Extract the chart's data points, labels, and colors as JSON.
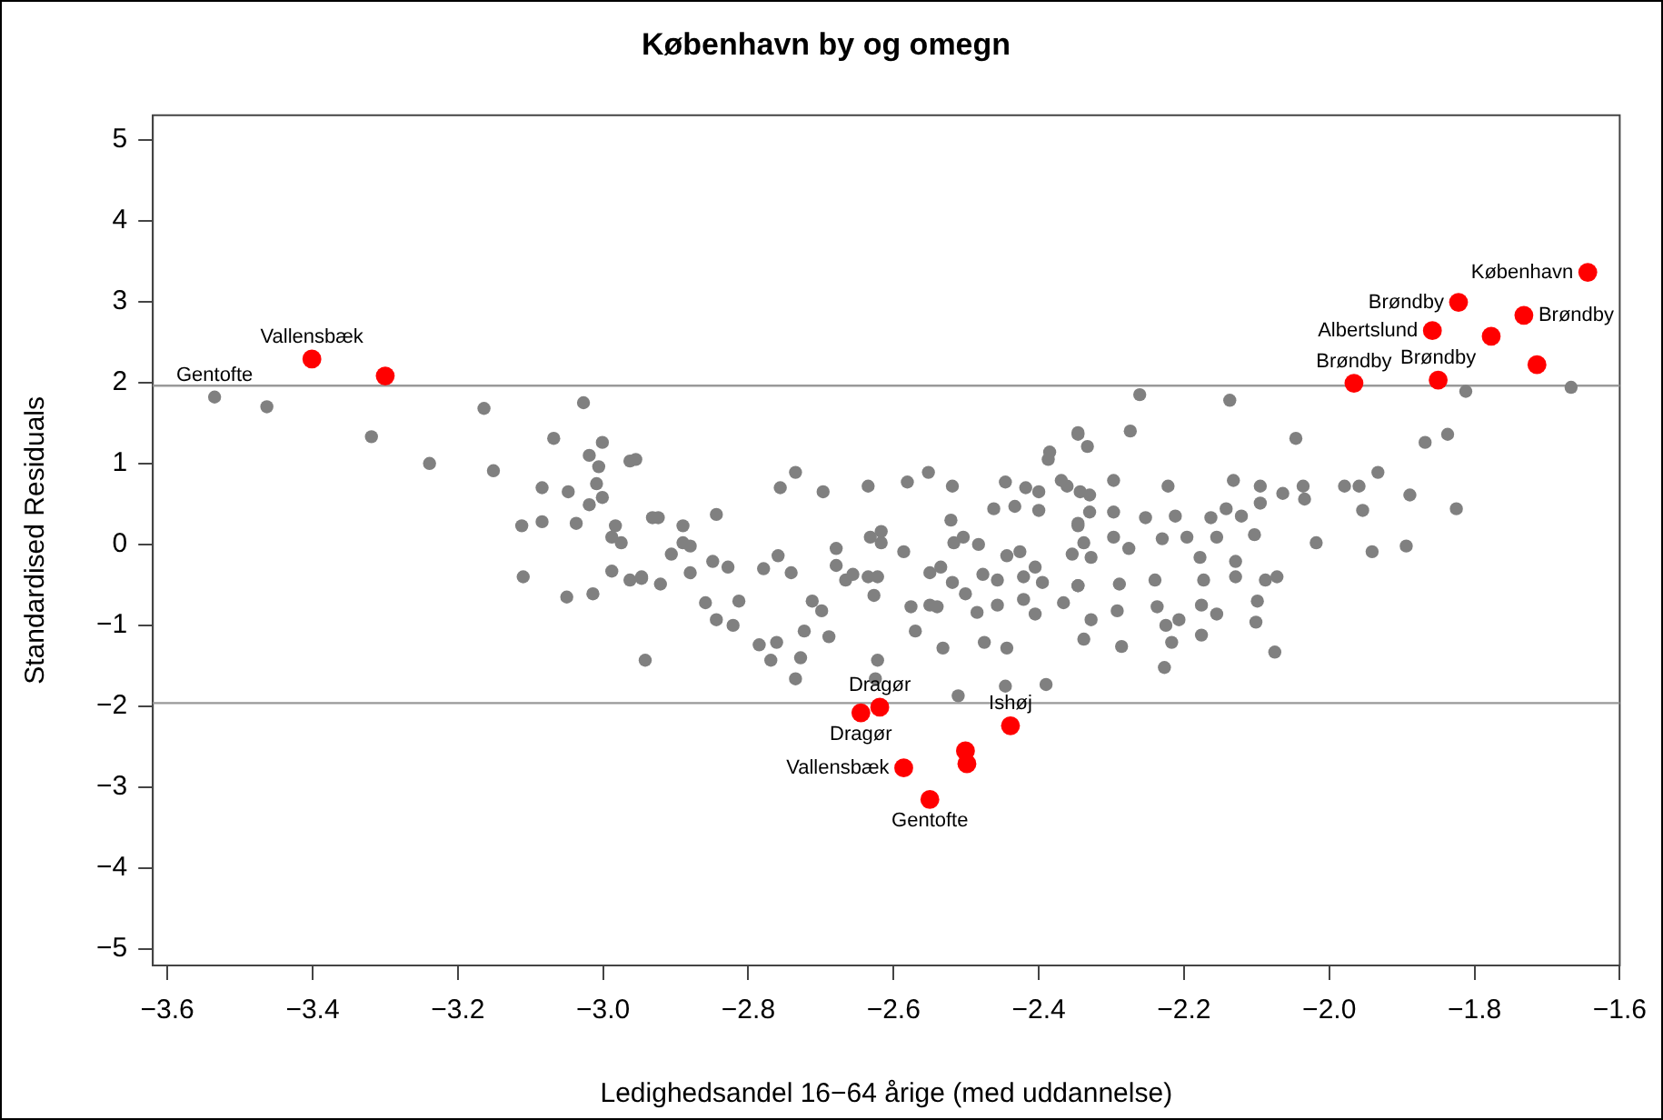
{
  "chart_data": {
    "type": "scatter",
    "title": "København by og omegn",
    "xlabel": "Ledighedsandel 16−64 årige (med uddannelse)",
    "ylabel": "Standardised Residuals",
    "xlim": [
      -3.62,
      -1.6
    ],
    "ylim": [
      -5.2,
      5.3
    ],
    "xticks": [
      -3.6,
      -3.4,
      -3.2,
      {
        "value": -3,
        "label": "−3.0"
      },
      -2.8,
      -2.6,
      -2.4,
      -2.2,
      {
        "value": -2,
        "label": "−2.0"
      },
      -1.8,
      -1.6
    ],
    "yticks": [
      -5,
      -4,
      -3,
      -2,
      -1,
      0,
      1,
      2,
      3,
      4,
      5
    ],
    "grid": false,
    "legend": false,
    "marker": "circle",
    "ref_lines": [
      {
        "axis": "y",
        "value": 1.96,
        "label": null,
        "color": "#999999"
      },
      {
        "axis": "y",
        "value": -1.96,
        "label": null,
        "color": "#999999"
      }
    ],
    "series": [
      {
        "color": "#808080",
        "x": [
          -3.535,
          -3.463,
          -3.319,
          -3.239,
          -3.164,
          -3.151,
          -3.027,
          -3.068,
          -3.001,
          -3.019,
          -3.006,
          -2.963,
          -3.084,
          -3.048,
          -3.009,
          -3.019,
          -3.001,
          -3.112,
          -3.084,
          -3.037,
          -2.983,
          -2.988,
          -2.975,
          -2.932,
          -3.11,
          -3.05,
          -3.014,
          -2.988,
          -2.963,
          -2.947,
          -2.942,
          -2.955,
          -2.924,
          -2.89,
          -2.89,
          -2.88,
          -2.906,
          -2.844,
          -2.849,
          -2.828,
          -2.88,
          -2.947,
          -2.921,
          -2.859,
          -2.813,
          -2.844,
          -2.821,
          -2.785,
          -2.761,
          -2.769,
          -2.728,
          -2.735,
          -2.723,
          -2.699,
          -2.712,
          -2.689,
          -2.756,
          -2.735,
          -2.697,
          -2.759,
          -2.779,
          -2.741,
          -2.679,
          -2.679,
          -2.666,
          -2.656,
          -2.635,
          -2.632,
          -2.617,
          -2.617,
          -2.635,
          -2.622,
          -2.627,
          -2.622,
          -2.625,
          -2.586,
          -2.581,
          -2.552,
          -2.519,
          -2.576,
          -2.55,
          -2.54,
          -2.57,
          -2.532,
          -2.55,
          -2.535,
          -2.519,
          -2.521,
          -2.517,
          -2.504,
          -2.511,
          -2.483,
          -2.485,
          -2.477,
          -2.457,
          -2.501,
          -2.457,
          -2.475,
          -2.444,
          -2.446,
          -2.462,
          -2.446,
          -2.433,
          -2.418,
          -2.4,
          -2.4,
          -2.444,
          -2.426,
          -2.421,
          -2.405,
          -2.395,
          -2.421,
          -2.405,
          -2.387,
          -2.385,
          -2.369,
          -2.343,
          -2.346,
          -2.333,
          -2.33,
          -2.338,
          -2.328,
          -2.346,
          -2.366,
          -2.328,
          -2.338,
          -2.39,
          -2.346,
          -2.261,
          -2.137,
          -2.346,
          -2.274,
          -2.046,
          -1.812,
          -1.667,
          -1.868,
          -1.837,
          -1.933,
          -1.889,
          -1.825,
          -1.979,
          -1.959,
          -1.954,
          -2.036,
          -2.034,
          -2.064,
          -2.095,
          -2.095,
          -2.132,
          -2.222,
          -2.297,
          -2.361,
          -2.33,
          -2.297,
          -2.346,
          -2.253,
          -2.212,
          -2.163,
          -2.142,
          -2.121,
          -2.103,
          -2.018,
          -1.941,
          -1.894,
          -2.354,
          -2.297,
          -2.276,
          -2.23,
          -2.196,
          -2.155,
          -2.129,
          -2.072,
          -2.088,
          -2.178,
          -2.24,
          -2.289,
          -2.346,
          -2.173,
          -2.129,
          -2.292,
          -2.237,
          -2.176,
          -2.155,
          -2.099,
          -2.225,
          -2.207,
          -2.217,
          -2.176,
          -2.101,
          -2.286,
          -2.227,
          -2.075
        ],
        "values": [
          1.82,
          1.7,
          1.33,
          1.0,
          1.68,
          0.91,
          1.75,
          1.31,
          1.26,
          1.1,
          0.96,
          1.03,
          0.7,
          0.65,
          0.75,
          0.49,
          0.58,
          0.23,
          0.28,
          0.26,
          0.23,
          0.09,
          0.02,
          0.33,
          -0.4,
          -0.65,
          -0.61,
          -0.33,
          -0.44,
          -0.42,
          -1.43,
          1.05,
          0.33,
          0.23,
          0.02,
          -0.02,
          -0.12,
          0.37,
          -0.21,
          -0.28,
          -0.35,
          -0.4,
          -0.49,
          -0.72,
          -0.7,
          -0.93,
          -1.0,
          -1.24,
          -1.21,
          -1.43,
          -1.4,
          -1.66,
          -1.07,
          -0.82,
          -0.7,
          -1.14,
          0.7,
          0.89,
          0.65,
          -0.14,
          -0.3,
          -0.35,
          -0.05,
          -0.26,
          -0.44,
          -0.37,
          0.72,
          0.09,
          0.16,
          0.02,
          -0.4,
          -0.4,
          -0.63,
          -1.43,
          -1.66,
          -0.09,
          0.77,
          0.89,
          0.72,
          -0.77,
          -0.75,
          -0.77,
          -1.07,
          -1.28,
          -0.35,
          -0.28,
          -0.47,
          0.3,
          0.02,
          0.09,
          -1.87,
          0.0,
          -0.84,
          -0.37,
          -0.44,
          -0.61,
          -0.75,
          -1.21,
          -1.28,
          -1.75,
          0.44,
          0.77,
          0.47,
          0.7,
          0.65,
          0.42,
          -0.14,
          -0.09,
          -0.4,
          -0.28,
          -0.47,
          -0.68,
          -0.86,
          1.05,
          1.14,
          0.79,
          0.65,
          1.36,
          1.21,
          0.4,
          0.02,
          -0.16,
          -0.51,
          -0.72,
          -0.93,
          -1.17,
          -1.73,
          0.23,
          1.85,
          1.78,
          1.38,
          1.4,
          1.31,
          1.89,
          1.94,
          1.26,
          1.36,
          0.89,
          0.61,
          0.44,
          0.72,
          0.72,
          0.42,
          0.72,
          0.56,
          0.63,
          0.72,
          0.51,
          0.79,
          0.72,
          0.79,
          0.72,
          0.61,
          0.4,
          0.26,
          0.33,
          0.35,
          0.33,
          0.44,
          0.35,
          0.12,
          0.02,
          -0.09,
          -0.02,
          -0.12,
          0.09,
          -0.05,
          0.07,
          0.09,
          0.09,
          -0.21,
          -0.4,
          -0.44,
          -0.16,
          -0.44,
          -0.49,
          -0.51,
          -0.44,
          -0.4,
          -0.82,
          -0.77,
          -0.75,
          -0.86,
          -0.7,
          -1.0,
          -0.93,
          -1.21,
          -1.12,
          -0.96,
          -1.26,
          -1.52,
          -1.33
        ]
      },
      {
        "color": "#ff0000",
        "x": [
          -3.401,
          -3.3,
          -1.644,
          -1.822,
          -1.732,
          -1.777,
          -1.858,
          -1.714,
          -1.966,
          -1.85,
          -2.645,
          -2.619,
          -2.586,
          -2.501,
          -2.499,
          -2.439,
          -2.55
        ],
        "values": [
          2.29,
          2.08,
          3.36,
          2.99,
          2.83,
          2.57,
          2.64,
          2.22,
          1.99,
          2.03,
          -2.08,
          -2.01,
          -2.76,
          -2.55,
          -2.71,
          -2.24,
          -3.15
        ]
      }
    ],
    "annotations": [
      {
        "text": "Vallensbæk",
        "x": -3.401,
        "y": 2.29
      },
      {
        "text": "Gentofte",
        "x": -3.535,
        "y": 1.82
      },
      {
        "text": "København",
        "x": -1.644,
        "y": 3.36
      },
      {
        "text": "Brøndby",
        "x": -1.822,
        "y": 2.99
      },
      {
        "text": "Brøndby",
        "x": -1.732,
        "y": 2.83
      },
      {
        "text": "Albertslund",
        "x": -1.858,
        "y": 2.64
      },
      {
        "text": "Brøndby",
        "x": -1.966,
        "y": 1.99
      },
      {
        "text": "Brøndby",
        "x": -1.85,
        "y": 2.03
      },
      {
        "text": "Dragør",
        "x": -2.645,
        "y": -2.08
      },
      {
        "text": "Dragør",
        "x": -2.619,
        "y": -2.01
      },
      {
        "text": "Ishøj",
        "x": -2.439,
        "y": -2.24
      },
      {
        "text": "Vallensbæk",
        "x": -2.586,
        "y": -2.76
      },
      {
        "text": "Gentofte",
        "x": -2.55,
        "y": -3.15
      }
    ]
  }
}
